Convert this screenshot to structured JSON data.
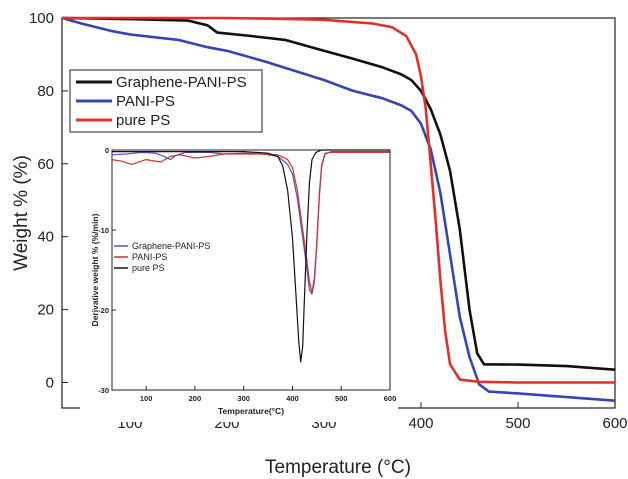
{
  "chart_data": [
    {
      "type": "line",
      "title": "",
      "xlabel": "Temperature (°C)",
      "ylabel": "Weight % (%)",
      "xlim": [
        30,
        600
      ],
      "ylim": [
        -7,
        100
      ],
      "x_ticks": [
        "100",
        "200",
        "300",
        "400",
        "500",
        "600"
      ],
      "y_ticks": [
        "0",
        "20",
        "40",
        "60",
        "80",
        "100"
      ],
      "legend_position": "upper-left",
      "series": [
        {
          "name": "Graphene-PANI-PS",
          "color": "#111111",
          "points": [
            [
              30,
              100
            ],
            [
              100,
              99.7
            ],
            [
              160,
              99.3
            ],
            [
              180,
              98
            ],
            [
              190,
              96
            ],
            [
              220,
              95.2
            ],
            [
              260,
              94
            ],
            [
              300,
              91
            ],
            [
              330,
              88.8
            ],
            [
              360,
              86.5
            ],
            [
              380,
              84.5
            ],
            [
              390,
              83
            ],
            [
              400,
              80
            ],
            [
              410,
              75
            ],
            [
              420,
              68
            ],
            [
              430,
              58
            ],
            [
              440,
              42
            ],
            [
              450,
              20
            ],
            [
              458,
              8
            ],
            [
              465,
              5
            ],
            [
              500,
              4.9
            ],
            [
              550,
              4.5
            ],
            [
              600,
              3.5
            ]
          ]
        },
        {
          "name": "PANI-PS",
          "color": "#3545b5",
          "points": [
            [
              30,
              100
            ],
            [
              50,
              98.5
            ],
            [
              80,
              96.5
            ],
            [
              100,
              95.5
            ],
            [
              150,
              94
            ],
            [
              180,
              92
            ],
            [
              200,
              91
            ],
            [
              240,
              88
            ],
            [
              270,
              85.5
            ],
            [
              300,
              83
            ],
            [
              330,
              80
            ],
            [
              360,
              78
            ],
            [
              380,
              76
            ],
            [
              390,
              74.5
            ],
            [
              400,
              71
            ],
            [
              410,
              64
            ],
            [
              420,
              52
            ],
            [
              430,
              35
            ],
            [
              440,
              18
            ],
            [
              450,
              7
            ],
            [
              460,
              -0.5
            ],
            [
              470,
              -2.5
            ],
            [
              500,
              -3
            ],
            [
              550,
              -4
            ],
            [
              600,
              -5
            ]
          ]
        },
        {
          "name": "pure PS",
          "color": "#e0302a",
          "points": [
            [
              30,
              100
            ],
            [
              200,
              100
            ],
            [
              250,
              99.8
            ],
            [
              300,
              99.5
            ],
            [
              350,
              98.5
            ],
            [
              370,
              97.5
            ],
            [
              385,
              95
            ],
            [
              395,
              90
            ],
            [
              400,
              84
            ],
            [
              405,
              75
            ],
            [
              410,
              60
            ],
            [
              415,
              45
            ],
            [
              420,
              28
            ],
            [
              425,
              14
            ],
            [
              430,
              5
            ],
            [
              440,
              0.8
            ],
            [
              460,
              0.2
            ],
            [
              500,
              0
            ],
            [
              600,
              0
            ]
          ]
        }
      ]
    },
    {
      "type": "line",
      "title": "",
      "xlabel": "Temperature(°C)",
      "ylabel": "Derivative weight % (%/min)",
      "xlim": [
        30,
        600
      ],
      "ylim": [
        -30,
        0
      ],
      "x_ticks": [
        "100",
        "200",
        "300",
        "400",
        "500",
        "600"
      ],
      "y_ticks": [
        "0",
        "-10",
        "-20",
        "-30"
      ],
      "legend_position": "lower-left",
      "series": [
        {
          "name": "Graphene-PANI-PS",
          "color": "#4a55c5",
          "points": [
            [
              30,
              -0.6
            ],
            [
              60,
              -0.5
            ],
            [
              90,
              -0.3
            ],
            [
              120,
              -0.4
            ],
            [
              140,
              -0.9
            ],
            [
              150,
              -1.2
            ],
            [
              160,
              -0.7
            ],
            [
              180,
              -0.3
            ],
            [
              230,
              -0.3
            ],
            [
              260,
              -0.5
            ],
            [
              300,
              -0.4
            ],
            [
              340,
              -0.5
            ],
            [
              370,
              -0.8
            ],
            [
              390,
              -1.8
            ],
            [
              400,
              -3
            ],
            [
              410,
              -6
            ],
            [
              420,
              -10.5
            ],
            [
              430,
              -15
            ],
            [
              435,
              -17.5
            ],
            [
              440,
              -18
            ],
            [
              445,
              -16.5
            ],
            [
              450,
              -12
            ],
            [
              455,
              -6
            ],
            [
              460,
              -2
            ],
            [
              467,
              -0.5
            ],
            [
              480,
              -0.2
            ],
            [
              600,
              -0.2
            ]
          ]
        },
        {
          "name": "PANI-PS",
          "color": "#d23232",
          "points": [
            [
              30,
              -1.2
            ],
            [
              50,
              -1.4
            ],
            [
              70,
              -1.8
            ],
            [
              100,
              -1.2
            ],
            [
              130,
              -1.5
            ],
            [
              150,
              -0.8
            ],
            [
              170,
              -0.6
            ],
            [
              200,
              -1
            ],
            [
              230,
              -0.8
            ],
            [
              260,
              -0.5
            ],
            [
              300,
              -0.5
            ],
            [
              340,
              -0.5
            ],
            [
              370,
              -0.6
            ],
            [
              390,
              -1.2
            ],
            [
              400,
              -2.2
            ],
            [
              410,
              -5
            ],
            [
              420,
              -9.5
            ],
            [
              430,
              -14
            ],
            [
              435,
              -16.5
            ],
            [
              440,
              -17.8
            ],
            [
              445,
              -16
            ],
            [
              450,
              -11.5
            ],
            [
              455,
              -5.5
            ],
            [
              460,
              -1.8
            ],
            [
              467,
              -0.4
            ],
            [
              480,
              -0.3
            ],
            [
              600,
              -0.3
            ]
          ]
        },
        {
          "name": "pure PS",
          "color": "#111111",
          "points": [
            [
              30,
              -0.2
            ],
            [
              200,
              -0.2
            ],
            [
              300,
              -0.2
            ],
            [
              350,
              -0.4
            ],
            [
              370,
              -0.8
            ],
            [
              380,
              -2
            ],
            [
              390,
              -5
            ],
            [
              400,
              -11
            ],
            [
              408,
              -19
            ],
            [
              413,
              -24
            ],
            [
              417,
              -26.5
            ],
            [
              421,
              -24.5
            ],
            [
              425,
              -18
            ],
            [
              430,
              -10
            ],
            [
              435,
              -4
            ],
            [
              440,
              -1.2
            ],
            [
              448,
              -0.3
            ],
            [
              460,
              0
            ],
            [
              600,
              0
            ]
          ]
        }
      ]
    }
  ]
}
